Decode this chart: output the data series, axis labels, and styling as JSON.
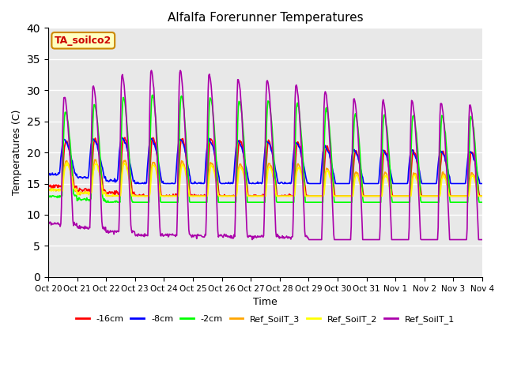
{
  "title": "Alfalfa Forerunner Temperatures",
  "ylabel": "Temperatures (C)",
  "xlabel": "Time",
  "annotation": "TA_soilco2",
  "ylim": [
    0,
    40
  ],
  "yticks": [
    0,
    5,
    10,
    15,
    20,
    25,
    30,
    35,
    40
  ],
  "xtick_labels": [
    "Oct 20",
    "Oct 21",
    "Oct 22",
    "Oct 23",
    "Oct 24",
    "Oct 25",
    "Oct 26",
    "Oct 27",
    "Oct 28",
    "Oct 29",
    "Oct 30",
    "Oct 31",
    "Nov 1",
    "Nov 2",
    "Nov 3",
    "Nov 4"
  ],
  "series_colors": {
    "-16cm": "#ff0000",
    "-8cm": "#0000ff",
    "-2cm": "#00ff00",
    "Ref_SoilT_3": "#ffa500",
    "Ref_SoilT_2": "#ffff00",
    "Ref_SoilT_1": "#aa00aa"
  },
  "background_color": "#e8e8e8",
  "figure_background": "#ffffff",
  "line_width": 1.2
}
